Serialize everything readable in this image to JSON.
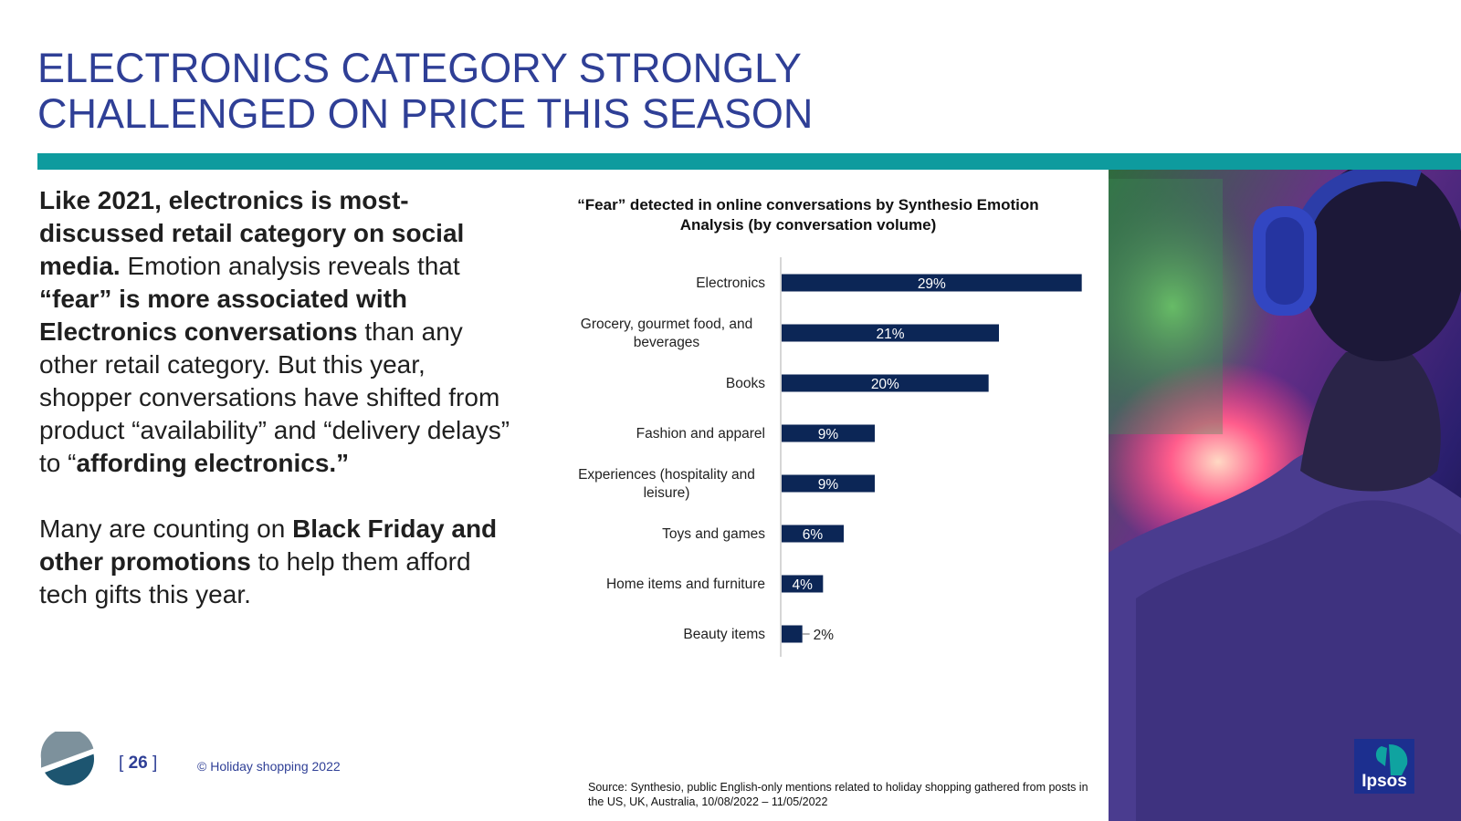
{
  "title": {
    "line1": "ELECTRONICS CATEGORY STRONGLY",
    "line2": "CHALLENGED ON PRICE THIS SEASON"
  },
  "body": {
    "p1_bold1": "Like 2021, electronics is most-discussed retail category on social media.",
    "p1_normal1": " Emotion analysis reveals that ",
    "p1_bold2": "“fear” is more associated with Electronics conversations",
    "p1_normal2": " than any other retail category. But this year, shopper conversations have shifted from product “availability” and “delivery delays” to “",
    "p1_bold3": "affording electronics.”",
    "p2_normal1": "Many are counting on ",
    "p2_bold1": "Black Friday and other promotions",
    "p2_normal2": " to help them afford tech gifts this year."
  },
  "chart_data": {
    "type": "bar",
    "orientation": "horizontal",
    "title": "“Fear” detected in online conversations by Synthesio Emotion Analysis (by conversation volume)",
    "categories": [
      "Electronics",
      "Grocery, gourmet food, and beverages",
      "Books",
      "Fashion and apparel",
      "Experiences (hospitality and leisure)",
      "Toys and games",
      "Home items and furniture",
      "Beauty items"
    ],
    "category_lines": [
      [
        "Electronics"
      ],
      [
        "Grocery, gourmet food, and",
        "beverages"
      ],
      [
        "Books"
      ],
      [
        "Fashion and apparel"
      ],
      [
        "Experiences (hospitality and",
        "leisure)"
      ],
      [
        "Toys and games"
      ],
      [
        "Home items and furniture"
      ],
      [
        "Beauty items"
      ]
    ],
    "values": [
      29,
      21,
      20,
      9,
      9,
      6,
      4,
      2
    ],
    "value_labels": [
      "29%",
      "21%",
      "20%",
      "9%",
      "9%",
      "6%",
      "4%",
      "2%"
    ],
    "unit": "%",
    "xlim": [
      0,
      30
    ],
    "grid": false,
    "bar_color": "#0c2656"
  },
  "footer": {
    "page_open": "[ ",
    "page_number": "26",
    "page_close": " ]",
    "copyright": "© Holiday shopping 2022",
    "source": "Source: Synthesio, public English-only mentions related to holiday shopping gathered from posts in the US, UK, Australia, 10/08/2022 – 11/05/2022",
    "brand": "Ipsos"
  },
  "colors": {
    "title": "#2f3f96",
    "accent_bar": "#0e9b9e",
    "bar": "#0c2656"
  }
}
